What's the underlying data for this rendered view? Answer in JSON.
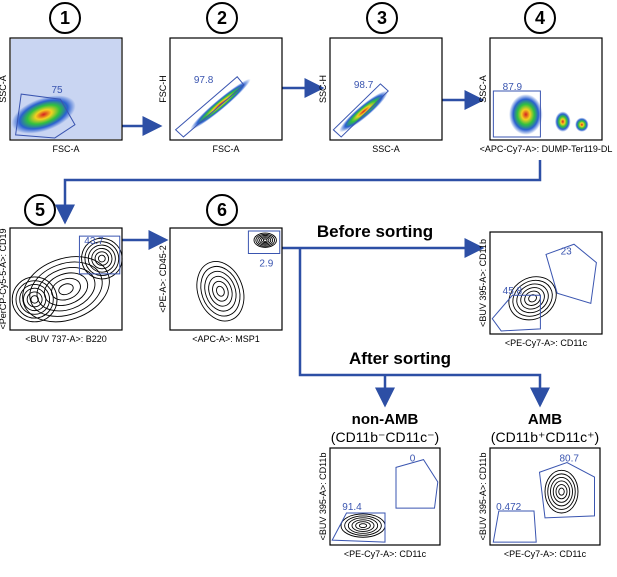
{
  "panels": [
    {
      "number": "1",
      "x_label": "FSC-A",
      "y_label": "SSC-A",
      "gates": [
        75
      ]
    },
    {
      "number": "2",
      "x_label": "FSC-A",
      "y_label": "FSC-H",
      "gates": [
        97.8
      ]
    },
    {
      "number": "3",
      "x_label": "SSC-A",
      "y_label": "SSC-H",
      "gates": [
        98.7
      ]
    },
    {
      "number": "4",
      "x_label": "<APC-Cy7-A>: DUMP-Ter119-DL",
      "y_label": "SSC-A",
      "gates": [
        87.9
      ]
    },
    {
      "number": "5",
      "x_label": "<BUV 737-A>: B220",
      "y_label": "<PerCP-Cy5-5-A>: CD19",
      "gates": [
        43.7
      ]
    },
    {
      "number": "6",
      "x_label": "<APC-A>: MSP1",
      "y_label": "<PE-A>: CD45-2",
      "gates": [
        2.9
      ]
    }
  ],
  "before_sorting": {
    "title": "Before sorting",
    "x_label": "<PE-Cy7-A>: CD11c",
    "y_label": "<BUV 395-A>: CD11b",
    "gates": [
      23,
      45.8
    ]
  },
  "after_sorting": {
    "title": "After sorting",
    "groups": [
      {
        "name": "non-AMB",
        "phenotype": "(CD11b⁻CD11c⁻)",
        "x_label": "<PE-Cy7-A>: CD11c",
        "y_label": "<BUV 395-A>: CD11b",
        "gates": [
          0,
          91.4
        ]
      },
      {
        "name": "AMB",
        "phenotype": "(CD11b⁺CD11c⁺)",
        "x_label": "<PE-Cy7-A>: CD11c",
        "y_label": "<BUV 395-A>: CD11b",
        "gates": [
          80.7,
          0.472
        ]
      }
    ]
  }
}
